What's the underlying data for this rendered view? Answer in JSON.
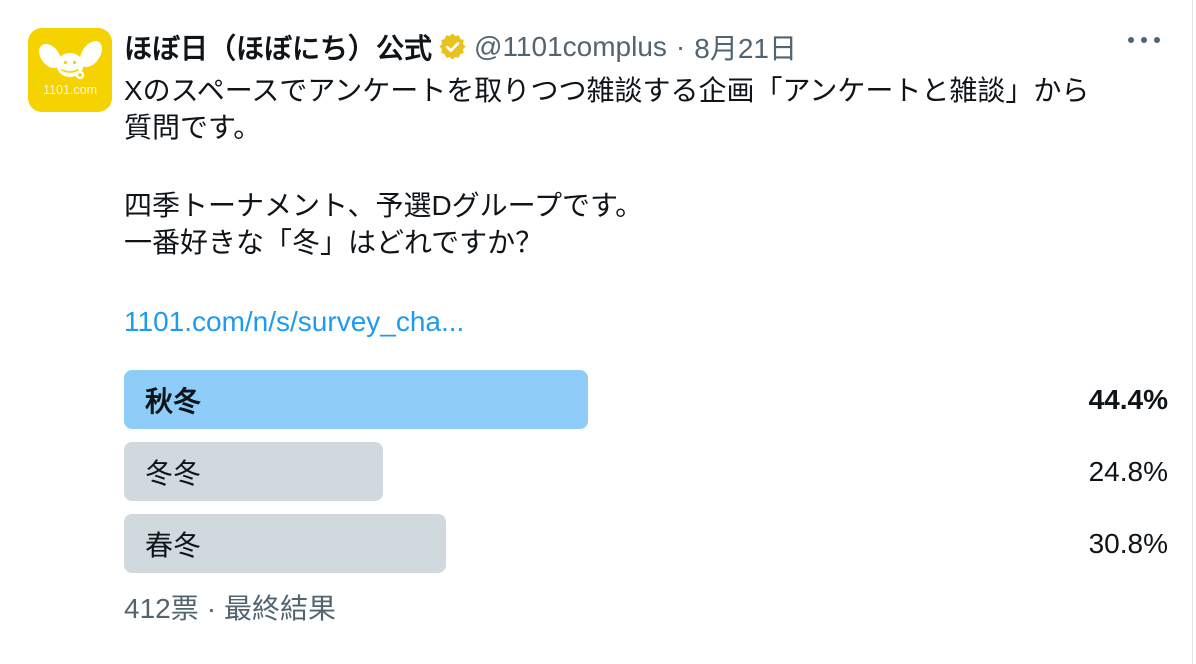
{
  "colors": {
    "text_primary": "#0F1419",
    "text_secondary": "#536471",
    "link_blue": "#1D9BF0",
    "poll_winner_bar": "#8ECDF8",
    "poll_other_bar": "#CFD9DE",
    "avatar_yellow": "#F5D300",
    "badge_gold": "#E8C21D",
    "divider": "#E1E8ED"
  },
  "icons": {
    "verified": "gold-verified-seal",
    "more": "horizontal-dots"
  },
  "header": {
    "display_name": "ほぼ日（ほぼにち）公式",
    "handle": "@1101complus",
    "separator": "·",
    "date": "8月21日",
    "avatar_logo_text": "1101.com"
  },
  "body": {
    "p1_line1": "Xのスペースでアンケートを取りつつ雑談する企画「アンケートと雑談」から",
    "p1_line2": "質問です。",
    "p2_line1": "四季トーナメント、予選Dグループです。",
    "p2_line2": "一番好きな「冬」はどれですか？",
    "link_text": "1101.com/n/s/survey_cha..."
  },
  "poll": {
    "options": [
      {
        "label": "秋冬",
        "percent_label": "44.4%",
        "percent": 44.4,
        "winner": true
      },
      {
        "label": "冬冬",
        "percent_label": "24.8%",
        "percent": 24.8,
        "winner": false
      },
      {
        "label": "春冬",
        "percent_label": "30.8%",
        "percent": 30.8,
        "winner": false
      }
    ],
    "votes": "412票",
    "separator": "·",
    "status": "最終結果"
  }
}
